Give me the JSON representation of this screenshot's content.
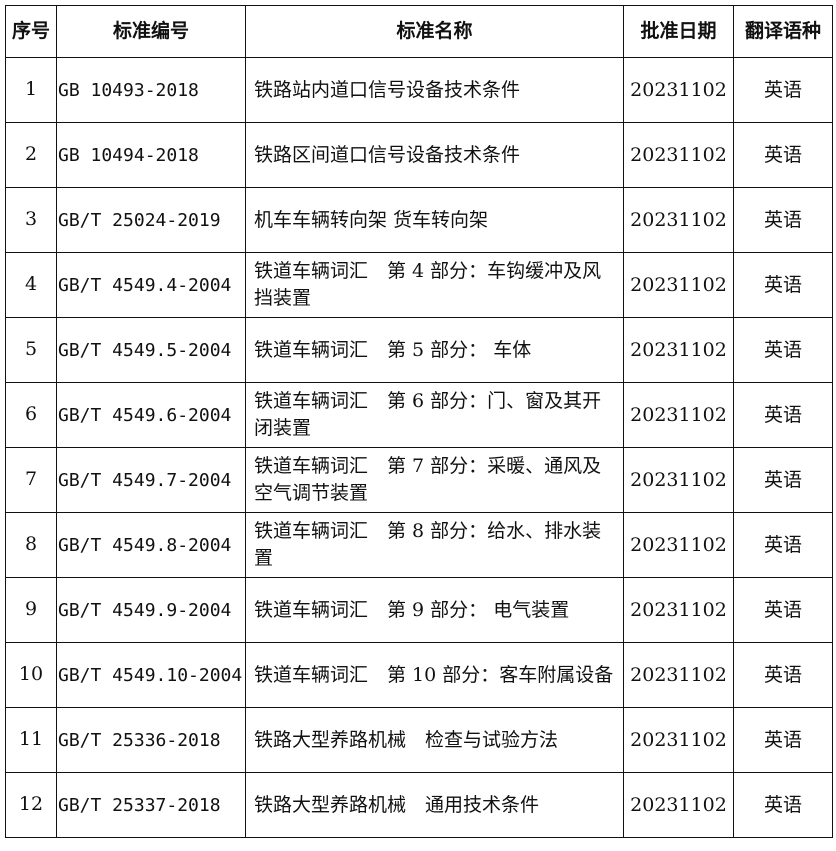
{
  "headers": [
    "序号",
    "标准编号",
    "标准名称",
    "批准日期",
    "翻译语种"
  ],
  "rows": [
    {
      "no": "1",
      "code": "GB 10493-2018",
      "name": "铁路站内道口信号设备技术条件",
      "date": "20231102",
      "lang": "英语"
    },
    {
      "no": "2",
      "code": "GB 10494-2018",
      "name": "铁路区间道口信号设备技术条件",
      "date": "20231102",
      "lang": "英语"
    },
    {
      "no": "3",
      "code": "GB/T 25024-2019",
      "name": "机车车辆转向架 货车转向架",
      "date": "20231102",
      "lang": "英语"
    },
    {
      "no": "4",
      "code": "GB/T 4549.4-2004",
      "name": "铁道车辆词汇　第 4 部分：车钩缓冲及风挡装置",
      "date": "20231102",
      "lang": "英语"
    },
    {
      "no": "5",
      "code": "GB/T 4549.5-2004",
      "name": "铁道车辆词汇　第 5 部分： 车体",
      "date": "20231102",
      "lang": "英语"
    },
    {
      "no": "6",
      "code": "GB/T 4549.6-2004",
      "name": "铁道车辆词汇　第 6 部分：门、窗及其开闭装置",
      "date": "20231102",
      "lang": "英语"
    },
    {
      "no": "7",
      "code": "GB/T 4549.7-2004",
      "name": "铁道车辆词汇　第 7 部分：采暖、通风及空气调节装置",
      "date": "20231102",
      "lang": "英语"
    },
    {
      "no": "8",
      "code": "GB/T 4549.8-2004",
      "name": "铁道车辆词汇　第 8 部分：给水、排水装置",
      "date": "20231102",
      "lang": "英语"
    },
    {
      "no": "9",
      "code": "GB/T 4549.9-2004",
      "name": "铁道车辆词汇　第 9 部分： 电气装置",
      "date": "20231102",
      "lang": "英语"
    },
    {
      "no": "10",
      "code": "GB/T 4549.10-2004",
      "name": "铁道车辆词汇　第 10 部分：客车附属设备",
      "date": "20231102",
      "lang": "英语"
    },
    {
      "no": "11",
      "code": "GB/T 25336-2018",
      "name": "铁路大型养路机械　检查与试验方法",
      "date": "20231102",
      "lang": "英语"
    },
    {
      "no": "12",
      "code": "GB/T 25337-2018",
      "name": "铁路大型养路机械　通用技术条件",
      "date": "20231102",
      "lang": "英语"
    }
  ]
}
